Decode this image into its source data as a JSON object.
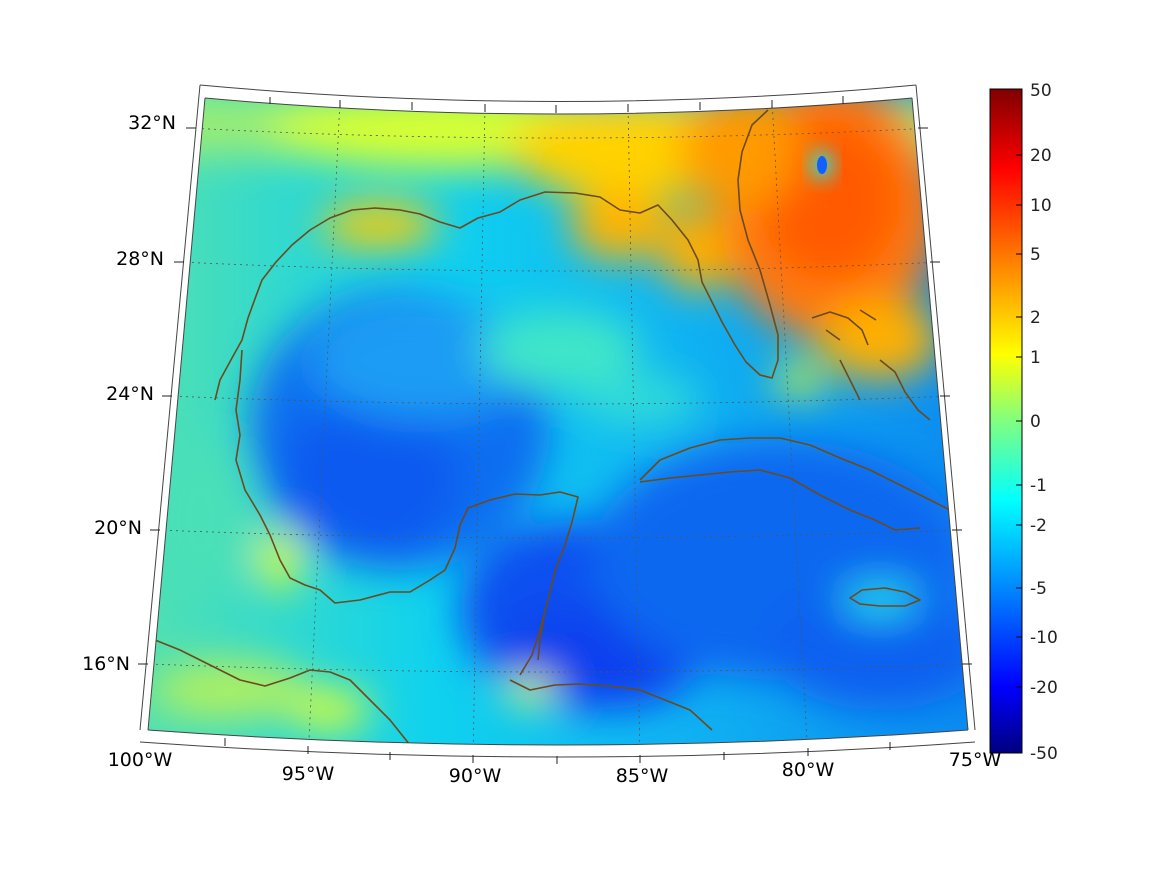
{
  "map": {
    "projection": "conic",
    "colormap": "jet",
    "coastline_color": "#6b4a1e",
    "graticule_style": "dotted",
    "longitude_labels": [
      "100°W",
      "95°W",
      "90°W",
      "85°W",
      "80°W",
      "75°W"
    ],
    "latitude_labels": [
      "32°N",
      "28°N",
      "24°N",
      "20°N",
      "16°N"
    ],
    "extent": {
      "lon": [
        -100,
        -75
      ],
      "lat": [
        14,
        33
      ]
    },
    "visible_regions": [
      "Gulf of Mexico",
      "Florida",
      "Cuba",
      "Yucatan Peninsula",
      "Bahamas",
      "Jamaica",
      "Caribbean Sea"
    ]
  },
  "colorbar": {
    "tick_labels": [
      "50",
      "20",
      "10",
      "5",
      "2",
      "1",
      "0",
      "-1",
      "-2",
      "-5",
      "-10",
      "-20",
      "-50"
    ],
    "min": -50,
    "max": 50,
    "colors": [
      "#7f0000",
      "#ff0000",
      "#ff8000",
      "#ffff00",
      "#80ff80",
      "#00ffff",
      "#0080ff",
      "#0000ff",
      "#00007f"
    ]
  }
}
